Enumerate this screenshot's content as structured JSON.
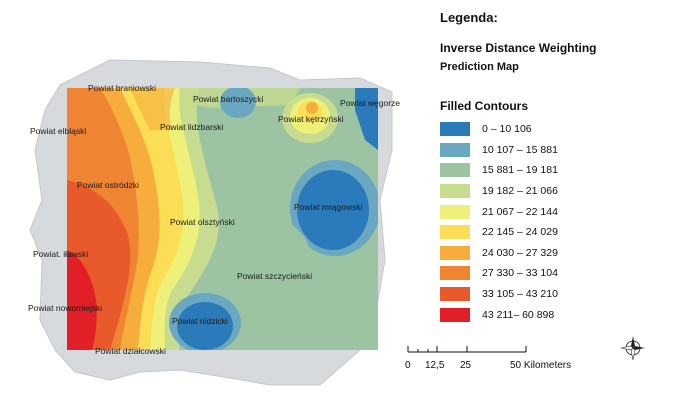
{
  "legend": {
    "title": "Legenda:",
    "subtitle": "Inverse Distance Weighting",
    "subtitle2": "Prediction Map",
    "contours_title": "Filled Contours",
    "classes": [
      {
        "label": "0 – 10 106",
        "color": "#2b7bba"
      },
      {
        "label": "10 107 – 15 881",
        "color": "#6aa7c0"
      },
      {
        "label": "15 881 – 19 181",
        "color": "#9dc4a2"
      },
      {
        "label": "19 182 – 21 066",
        "color": "#c7dc8e"
      },
      {
        "label": "21 067 – 22 144",
        "color": "#eef07a"
      },
      {
        "label": "22 145 – 24 029",
        "color": "#fbde56"
      },
      {
        "label": "24 030 – 27 329",
        "color": "#f6ad3b"
      },
      {
        "label": "27 330 – 33 104",
        "color": "#ef8433"
      },
      {
        "label": "33 105 – 43 210",
        "color": "#e85a2c"
      },
      {
        "label": "43 211– 60 898",
        "color": "#e01f26"
      }
    ]
  },
  "scale": {
    "labels": [
      "0",
      "12,5",
      "25",
      "50 Kilometers"
    ]
  },
  "map": {
    "counties": [
      "Powiat braniowski",
      "Powiat bartoszycki",
      "Powiat węgorzewski",
      "Powiat elbląski",
      "Powiat lidzbarski",
      "Powiat kętrzyński",
      "Powiat ostródzki",
      "Powiat mrągowski",
      "Powiat olsztyński",
      "Powiat. iławski",
      "Powiat szczycieński",
      "Powiat nowomiejski",
      "Powiat nidzicki",
      "Powiat działcowski"
    ]
  }
}
